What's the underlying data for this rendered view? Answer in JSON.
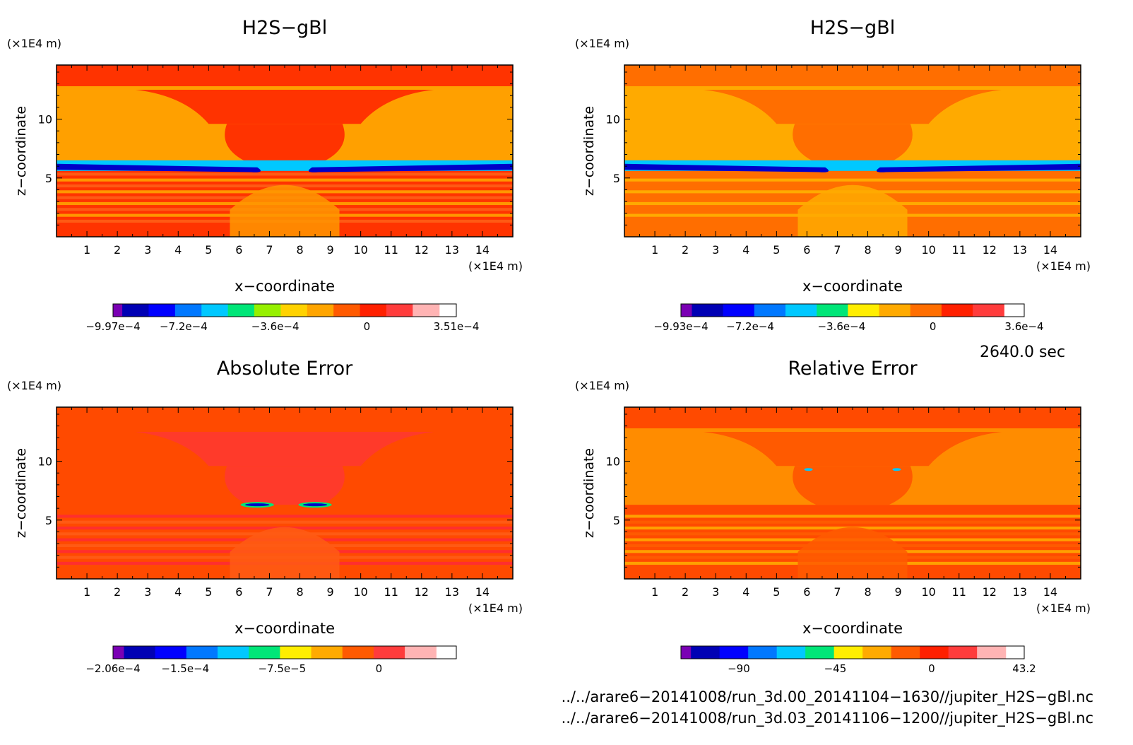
{
  "chart_data": [
    {
      "type": "heatmap",
      "title": "H2S−gBl",
      "xlabel": "x−coordinate",
      "ylabel": "z−coordinate",
      "x_unit": "(×1E4 m)",
      "y_unit": "(×1E4 m)",
      "xlim": [
        0,
        15
      ],
      "ylim": [
        0,
        14.6
      ],
      "xticks": [
        1,
        2,
        3,
        4,
        5,
        6,
        7,
        8,
        9,
        10,
        11,
        12,
        13,
        14
      ],
      "yticks": [
        5,
        10
      ],
      "colorbar": {
        "min": -0.000997,
        "max": 0.000351,
        "labels": [
          {
            "value": -0.000997,
            "text": "−9.97e−4"
          },
          {
            "value": -0.00072,
            "text": "−7.2e−4"
          },
          {
            "value": -0.00036,
            "text": "−3.6e−4"
          },
          {
            "value": 0,
            "text": "0"
          },
          {
            "value": 0.000351,
            "text": "3.51e−4"
          }
        ],
        "colors": [
          "#7a00b4",
          "#0000b4",
          "#0000ff",
          "#0078ff",
          "#00c8ff",
          "#00e678",
          "#96f000",
          "#ffd200",
          "#ffa500",
          "#ff5a00",
          "#ff2000",
          "#ff3c3c",
          "#ffb4b4"
        ]
      },
      "field": {
        "background": "#ff3300",
        "middle_band": "#ffa000",
        "core": "#ff3300",
        "jet_low": "#0000c8",
        "jet_edge": "#00c8ff",
        "lower_stripes": "#ff5a14",
        "lower_alt": "#ff9600",
        "jet_level": 6.0
      }
    },
    {
      "type": "heatmap",
      "title": "H2S−gBl",
      "xlabel": "x−coordinate",
      "ylabel": "z−coordinate",
      "x_unit": "(×1E4 m)",
      "y_unit": "(×1E4 m)",
      "xlim": [
        0,
        15
      ],
      "ylim": [
        0,
        14.6
      ],
      "xticks": [
        1,
        2,
        3,
        4,
        5,
        6,
        7,
        8,
        9,
        10,
        11,
        12,
        13,
        14
      ],
      "yticks": [
        5,
        10
      ],
      "colorbar": {
        "min": -0.000993,
        "max": 0.00036,
        "labels": [
          {
            "value": -0.000993,
            "text": "−9.93e−4"
          },
          {
            "value": -0.00072,
            "text": "−7.2e−4"
          },
          {
            "value": -0.00036,
            "text": "−3.6e−4"
          },
          {
            "value": 0,
            "text": "0"
          },
          {
            "value": 0.00036,
            "text": "3.6e−4"
          }
        ],
        "colors": [
          "#7a00b4",
          "#0000b4",
          "#0000ff",
          "#0078ff",
          "#00c8ff",
          "#00e678",
          "#ffee00",
          "#ffaa00",
          "#ff6e00",
          "#ff2000",
          "#ff3c3c"
        ]
      },
      "field": {
        "background": "#ff6e00",
        "middle_band": "#ffaa00",
        "core": "#ff6e00",
        "jet_low": "#0000c8",
        "jet_edge": "#00c8ff",
        "lower_stripes": "#ff6e00",
        "lower_alt": "#ffaa00",
        "jet_level": 6.0
      }
    },
    {
      "type": "heatmap",
      "title": "Absolute Error",
      "xlabel": "x−coordinate",
      "ylabel": "z−coordinate",
      "x_unit": "(×1E4 m)",
      "y_unit": "(×1E4 m)",
      "xlim": [
        0,
        15
      ],
      "ylim": [
        0,
        14.6
      ],
      "xticks": [
        1,
        2,
        3,
        4,
        5,
        6,
        7,
        8,
        9,
        10,
        11,
        12,
        13,
        14
      ],
      "yticks": [
        5,
        10
      ],
      "colorbar": {
        "min": -0.000206,
        "max": 6e-05,
        "labels": [
          {
            "value": -0.000206,
            "text": "−2.06e−4"
          },
          {
            "value": -0.00015,
            "text": "−1.5e−4"
          },
          {
            "value": -7.5e-05,
            "text": "−7.5e−5"
          },
          {
            "value": 0,
            "text": "0"
          }
        ],
        "colors": [
          "#7a00b4",
          "#0000b4",
          "#0000ff",
          "#0078ff",
          "#00c8ff",
          "#00e678",
          "#ffee00",
          "#ffaa00",
          "#ff5a00",
          "#ff3c3c",
          "#ffb4b4"
        ]
      },
      "field": {
        "background": "#ff4a00",
        "middle_band": "#ff4a00",
        "core": "#ff3a2a",
        "jet_low": "#0000c8",
        "jet_edge": "#00e678",
        "lower_stripes": "#ff2e2e",
        "lower_alt": "#ff5a14",
        "jet_level": 6.3
      }
    },
    {
      "type": "heatmap",
      "title": "Relative Error",
      "xlabel": "x−coordinate",
      "ylabel": "z−coordinate",
      "x_unit": "(×1E4 m)",
      "y_unit": "(×1E4 m)",
      "xlim": [
        0,
        15
      ],
      "ylim": [
        0,
        14.6
      ],
      "xticks": [
        1,
        2,
        3,
        4,
        5,
        6,
        7,
        8,
        9,
        10,
        11,
        12,
        13,
        14
      ],
      "yticks": [
        5,
        10
      ],
      "colorbar": {
        "min": -117,
        "max": 43.2,
        "labels": [
          {
            "value": -90,
            "text": "−90"
          },
          {
            "value": -45,
            "text": "−45"
          },
          {
            "value": 0,
            "text": "0"
          },
          {
            "value": 43.2,
            "text": "43.2"
          }
        ],
        "colors": [
          "#7a00b4",
          "#0000b4",
          "#0000ff",
          "#0078ff",
          "#00c8ff",
          "#00e678",
          "#ffee00",
          "#ffaa00",
          "#ff5a00",
          "#ff2000",
          "#ff3c3c",
          "#ffb4b4"
        ]
      },
      "field": {
        "background": "#ff4a00",
        "middle_band": "#ff8c00",
        "core": "#ff5a00",
        "jet_low": "#ffaa00",
        "jet_edge": "#00c8ff",
        "lower_stripes": "#ffa000",
        "lower_alt": "#ff5a00",
        "jet_level": 9.3
      }
    }
  ],
  "time_label": "2640.0 sec",
  "files": [
    "../../arare6−20141008/run_3d.00_20141104−1630//jupiter_H2S−gBl.nc",
    "../../arare6−20141008/run_3d.03_20141106−1200//jupiter_H2S−gBl.nc"
  ]
}
